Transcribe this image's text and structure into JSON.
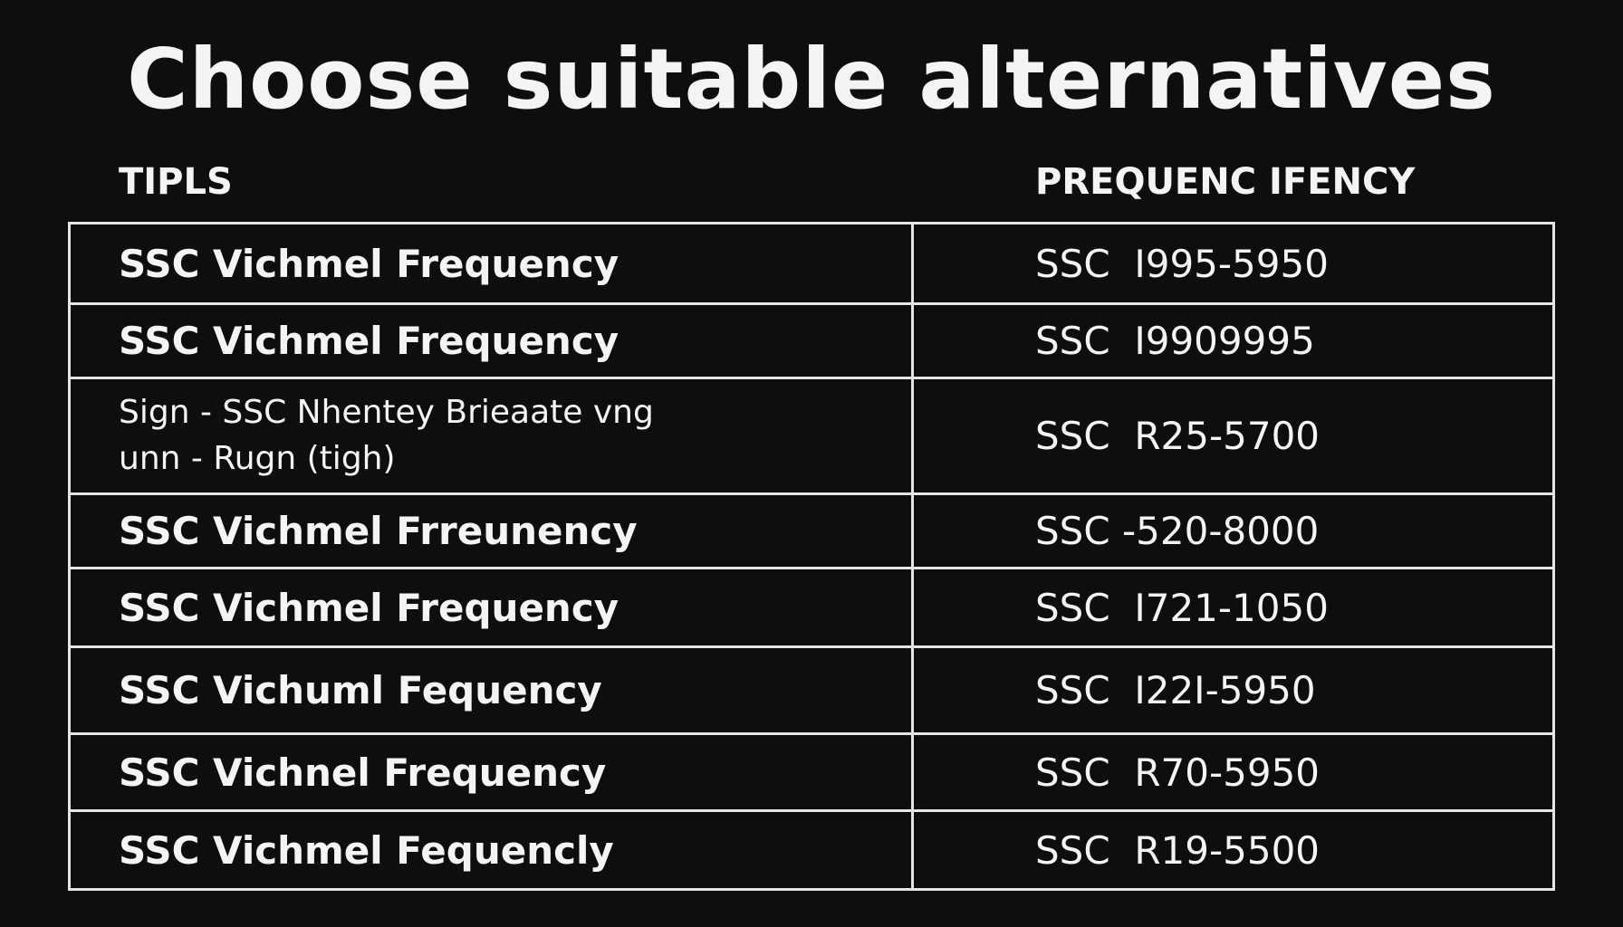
{
  "header": {
    "title": "Choose suitable alternatives"
  },
  "table": {
    "columns": [
      "TIPLS",
      "PREQUENC IFENCY"
    ],
    "rows": [
      [
        "SSC Vichmel Frequency",
        "SSC  I995-5950"
      ],
      [
        "SSC Vichmel Frequency",
        "SSC  I9909995"
      ],
      [
        [
          "Sign - SSC Nhentey Brieaate vng",
          "unn - Rugn (tigh)"
        ],
        "SSC  R25-5700"
      ],
      [
        "SSC Vichmel Frreunency",
        "SSC -520-8000"
      ],
      [
        "SSC Vichmel Frequency",
        "SSC  I721-1050"
      ],
      [
        "SSC Vichuml Fequency",
        "SSC  I22I-5950"
      ],
      [
        "SSC Vichnel Frequency",
        "SSC  R70-5950"
      ],
      [
        "SSC Vichmel Fequencly",
        "SSC  R19-5500"
      ]
    ]
  }
}
